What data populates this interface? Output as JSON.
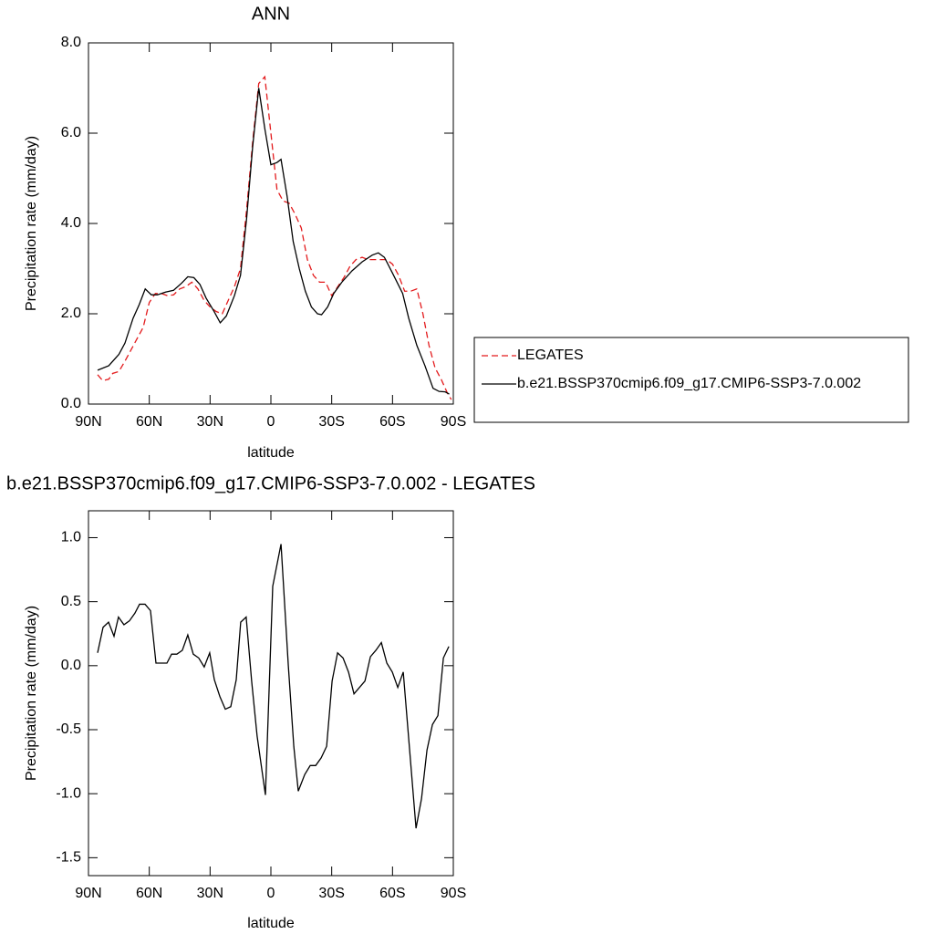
{
  "chart_data": [
    {
      "type": "line",
      "title": "ANN",
      "x_label": "latitude",
      "y_label": "Precipitation rate (mm/day)",
      "xlim": [
        90,
        -90
      ],
      "xticks": [
        {
          "value": 90,
          "label": "90N"
        },
        {
          "value": 60,
          "label": "60N"
        },
        {
          "value": 30,
          "label": "30N"
        },
        0,
        {
          "value": -30,
          "label": "30S"
        },
        {
          "value": -60,
          "label": "60S"
        },
        {
          "value": -90,
          "label": "90S"
        }
      ],
      "ylim": [
        0,
        8
      ],
      "yticks": [
        {
          "value": 0,
          "label": "0.0"
        },
        {
          "value": 2,
          "label": "2.0"
        },
        {
          "value": 4,
          "label": "4.0"
        },
        {
          "value": 6,
          "label": "6.0"
        },
        {
          "value": 8,
          "label": "8.0"
        }
      ],
      "legend": "right",
      "series": [
        {
          "name": "LEGATES",
          "color": "#e31a1c",
          "style": "dashed",
          "x": [
            85.5,
            83,
            80,
            78,
            75,
            72,
            69,
            66,
            63,
            60,
            57,
            54,
            51,
            48,
            45,
            42,
            39,
            36,
            33,
            30,
            27,
            24,
            21,
            18,
            15,
            12,
            9,
            6,
            3,
            0,
            -3,
            -6,
            -9,
            -12,
            -15,
            -18,
            -21,
            -24,
            -27,
            -30,
            -33,
            -36,
            -39,
            -42,
            -45,
            -48,
            -51,
            -54,
            -57,
            -60,
            -63,
            -66,
            -69,
            -72,
            -75,
            -78,
            -81,
            -84,
            -87,
            -89
          ],
          "values": [
            0.65,
            0.52,
            0.55,
            0.68,
            0.72,
            0.95,
            1.2,
            1.45,
            1.7,
            2.25,
            2.45,
            2.45,
            2.4,
            2.42,
            2.55,
            2.6,
            2.7,
            2.55,
            2.3,
            2.15,
            2.05,
            2.0,
            2.3,
            2.6,
            3.0,
            4.3,
            5.8,
            7.1,
            7.25,
            6.0,
            4.75,
            4.5,
            4.45,
            4.2,
            3.9,
            3.2,
            2.85,
            2.7,
            2.7,
            2.4,
            2.6,
            2.8,
            3.05,
            3.2,
            3.25,
            3.2,
            3.2,
            3.2,
            3.2,
            3.1,
            2.85,
            2.5,
            2.5,
            2.55,
            2.0,
            1.3,
            0.8,
            0.55,
            0.25,
            0.1
          ]
        },
        {
          "name": "b.e21.BSSP370cmip6.f09_g17.CMIP6-SSP3-7.0.002",
          "color": "#000000",
          "style": "solid",
          "x": [
            85.5,
            80,
            75,
            72,
            68,
            65,
            62,
            59,
            56,
            52,
            48,
            44,
            41,
            38,
            35,
            32,
            28,
            25,
            22,
            18,
            15,
            12,
            9,
            6,
            3,
            0,
            -3,
            -5,
            -8,
            -11,
            -14,
            -17,
            -20,
            -23,
            -25,
            -28,
            -31,
            -35,
            -40,
            -45,
            -50,
            -53,
            -56,
            -60,
            -65,
            -68,
            -72,
            -76,
            -80,
            -83,
            -86,
            -88
          ],
          "values": [
            0.75,
            0.85,
            1.1,
            1.35,
            1.9,
            2.2,
            2.55,
            2.42,
            2.42,
            2.48,
            2.52,
            2.68,
            2.82,
            2.8,
            2.65,
            2.35,
            2.05,
            1.8,
            1.95,
            2.4,
            2.85,
            4.1,
            5.7,
            7.0,
            6.1,
            5.3,
            5.35,
            5.42,
            4.6,
            3.6,
            3.0,
            2.5,
            2.15,
            2.0,
            1.98,
            2.15,
            2.45,
            2.7,
            2.95,
            3.15,
            3.3,
            3.35,
            3.25,
            2.9,
            2.45,
            1.9,
            1.3,
            0.85,
            0.35,
            0.28,
            0.27,
            0.22
          ]
        }
      ]
    },
    {
      "type": "line",
      "title": "b.e21.BSSP370cmip6.f09_g17.CMIP6-SSP3-7.0.002 - LEGATES",
      "x_label": "latitude",
      "y_label": "Precipitation rate (mm/day)",
      "xlim": [
        90,
        -90
      ],
      "xticks": [
        {
          "value": 90,
          "label": "90N"
        },
        {
          "value": 60,
          "label": "60N"
        },
        {
          "value": 30,
          "label": "30N"
        },
        0,
        {
          "value": -30,
          "label": "30S"
        },
        {
          "value": -60,
          "label": "60S"
        },
        {
          "value": -90,
          "label": "90S"
        }
      ],
      "ylim": [
        -1.64,
        1.21
      ],
      "yticks": [
        {
          "value": -1.5,
          "label": "-1.5"
        },
        {
          "value": -1,
          "label": "-1.0"
        },
        -0.5,
        {
          "value": 0,
          "label": "0.0"
        },
        0.5,
        {
          "value": 1,
          "label": "1.0"
        }
      ],
      "series": [
        {
          "color": "#000000",
          "style": "solid",
          "x": [
            85.5,
            82.8,
            80.1,
            77.4,
            75.2,
            72.5,
            69.8,
            67.1,
            64.8,
            62.1,
            59.4,
            56.7,
            54.0,
            51.3,
            49.0,
            46.4,
            43.7,
            41.0,
            38.3,
            35.6,
            32.9,
            30.2,
            27.9,
            25.2,
            22.5,
            19.8,
            17.1,
            14.9,
            12.2,
            9.5,
            6.8,
            2.7,
            -0.9,
            -5.0,
            -8.6,
            -11.3,
            -13.5,
            -16.7,
            -19.4,
            -22.1,
            -24.8,
            -27.5,
            -30.2,
            -32.9,
            -35.6,
            -38.3,
            -41.0,
            -43.7,
            -46.4,
            -49.1,
            -51.8,
            -54.5,
            -57.2,
            -59.9,
            -62.6,
            -65.3,
            -68.4,
            -71.6,
            -74.3,
            -77.0,
            -79.7,
            -82.4,
            -85.1,
            -87.8
          ],
          "values": [
            0.1,
            0.3,
            0.34,
            0.23,
            0.38,
            0.32,
            0.35,
            0.41,
            0.48,
            0.48,
            0.43,
            0.02,
            0.02,
            0.02,
            0.09,
            0.09,
            0.12,
            0.24,
            0.09,
            0.06,
            -0.01,
            0.1,
            -0.11,
            -0.24,
            -0.34,
            -0.32,
            -0.11,
            0.34,
            0.38,
            -0.12,
            -0.55,
            -1.01,
            0.62,
            0.95,
            0.0,
            -0.63,
            -0.98,
            -0.85,
            -0.78,
            -0.78,
            -0.72,
            -0.63,
            -0.12,
            0.1,
            0.06,
            -0.05,
            -0.22,
            -0.17,
            -0.12,
            0.07,
            0.12,
            0.18,
            0.02,
            -0.05,
            -0.17,
            -0.05,
            -0.65,
            -1.27,
            -1.04,
            -0.66,
            -0.46,
            -0.39,
            0.06,
            0.15
          ]
        }
      ]
    }
  ]
}
